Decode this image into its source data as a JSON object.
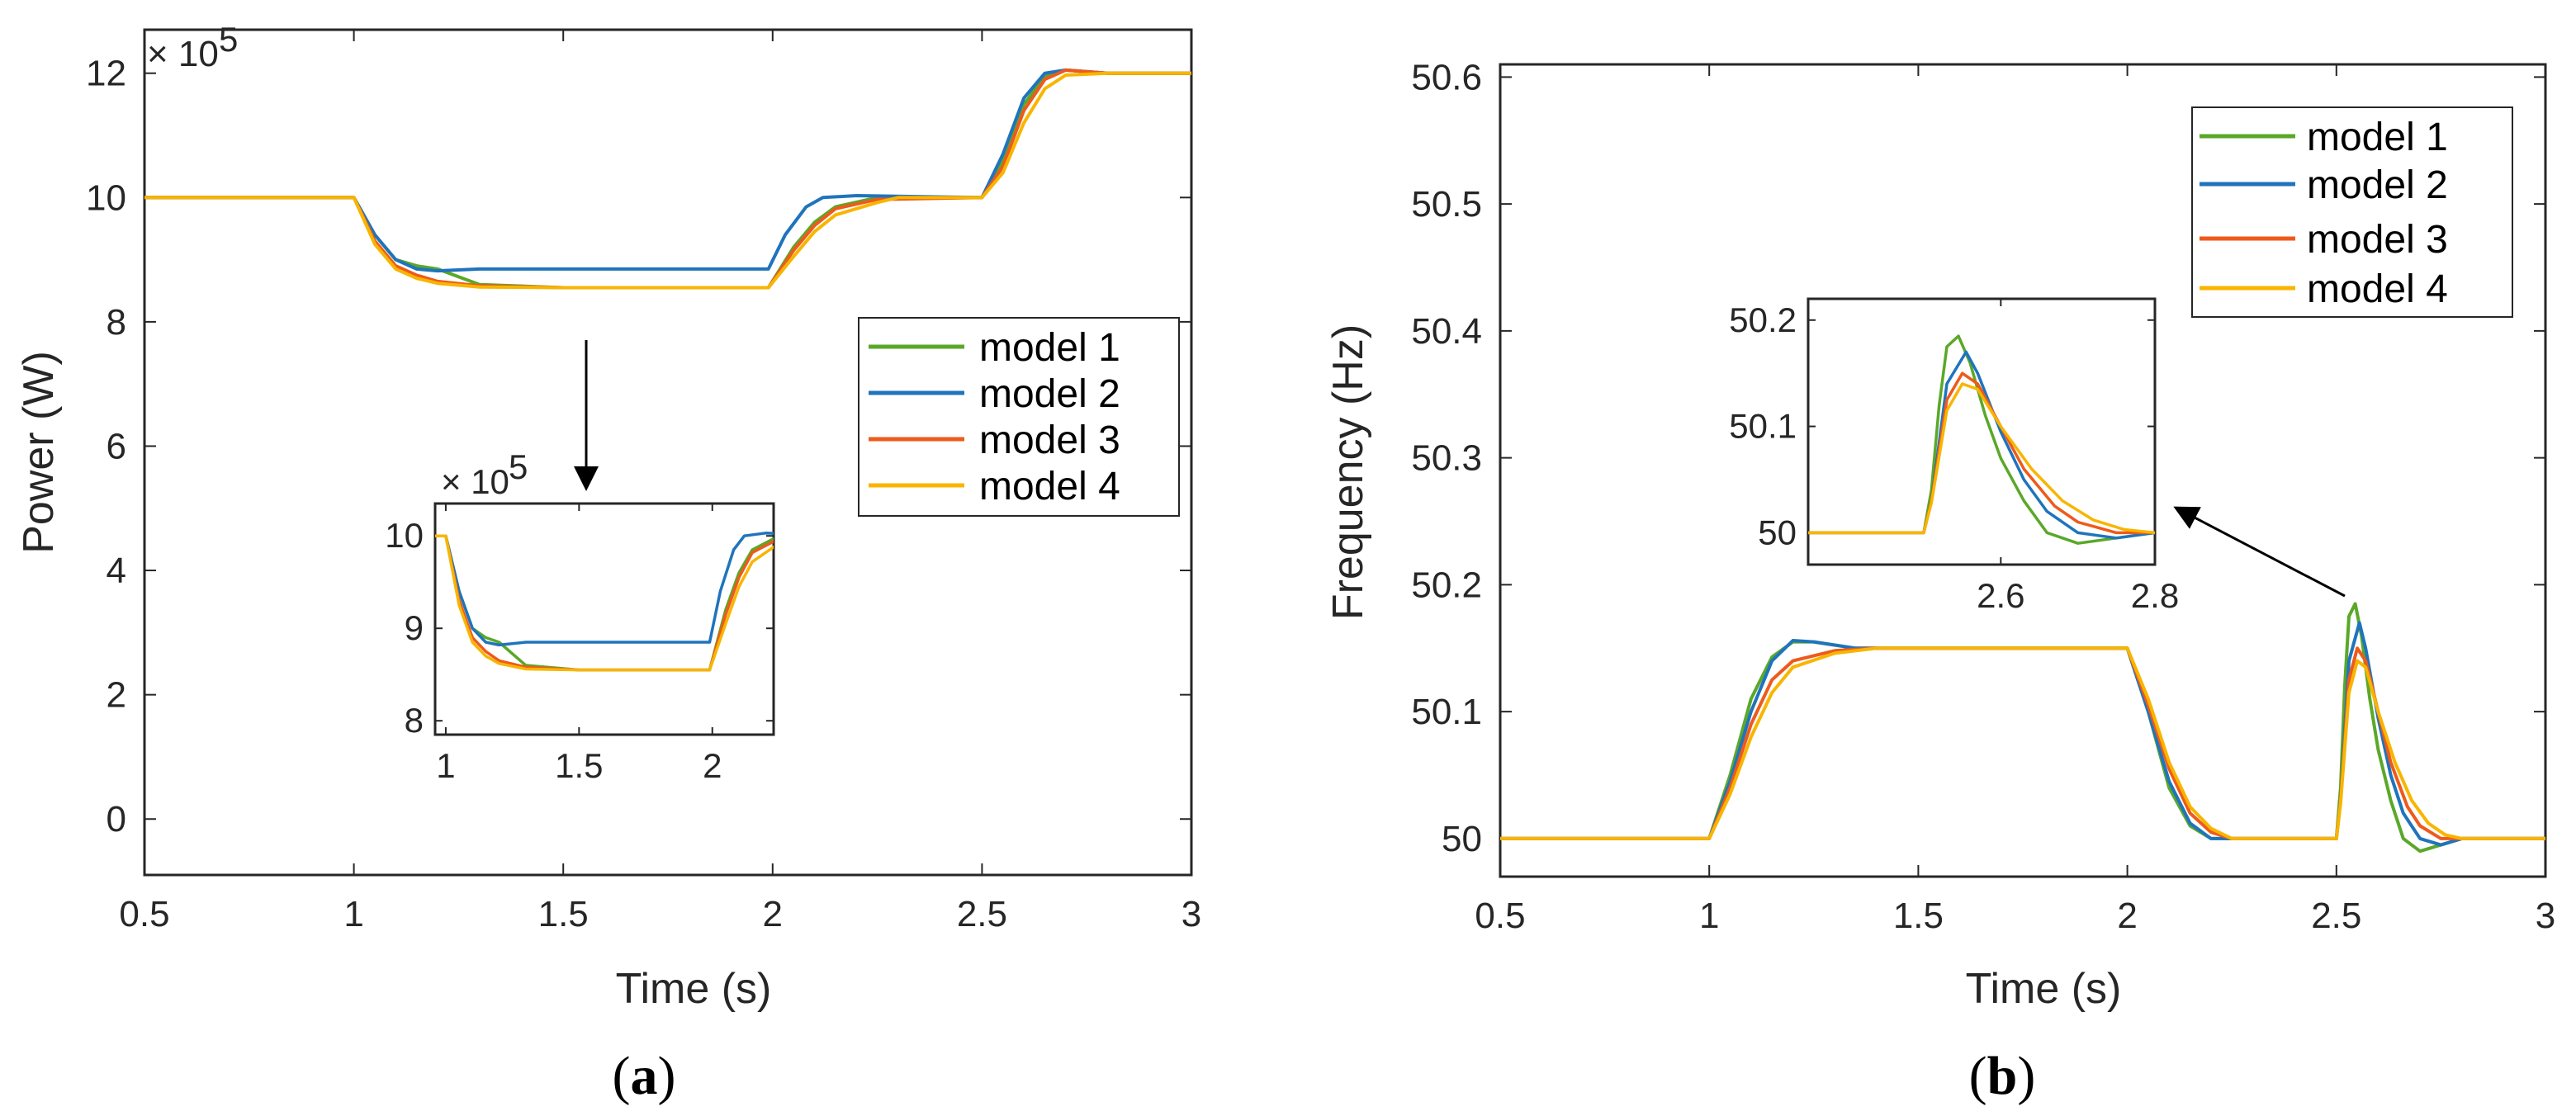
{
  "colors": {
    "model1": "#5aa829",
    "model2": "#1f74bc",
    "model3": "#ee5a1c",
    "model4": "#f8b500",
    "axis": "#262626"
  },
  "chart_data": [
    {
      "id": "a",
      "type": "line",
      "caption": "a",
      "xlabel": "Time (s)",
      "ylabel": "Power (W)",
      "exponent_base": "× 10",
      "exponent_power": "5",
      "xlim": [
        0.5,
        3
      ],
      "ylim": [
        -0.9,
        12.7
      ],
      "xticks": [
        0.5,
        1,
        1.5,
        2,
        2.5,
        3
      ],
      "xtick_labels": [
        "0.5",
        "1",
        "1.5",
        "2",
        "2.5",
        "3"
      ],
      "yticks": [
        0,
        2,
        4,
        6,
        8,
        10,
        12
      ],
      "ytick_labels": [
        "0",
        "2",
        "4",
        "6",
        "8",
        "10",
        "12"
      ],
      "legend": [
        "model 1",
        "model 2",
        "model 3",
        "model 4"
      ],
      "legend_position": "right",
      "series": [
        {
          "name": "model 1",
          "points": [
            [
              0.5,
              10
            ],
            [
              1,
              10
            ],
            [
              1.05,
              9.4
            ],
            [
              1.1,
              9.0
            ],
            [
              1.15,
              8.9
            ],
            [
              1.2,
              8.85
            ],
            [
              1.3,
              8.6
            ],
            [
              1.5,
              8.55
            ],
            [
              1.99,
              8.55
            ],
            [
              2.05,
              9.2
            ],
            [
              2.1,
              9.6
            ],
            [
              2.15,
              9.85
            ],
            [
              2.25,
              10.0
            ],
            [
              2.5,
              10.0
            ],
            [
              2.55,
              10.6
            ],
            [
              2.6,
              11.5
            ],
            [
              2.65,
              11.95
            ],
            [
              2.7,
              12.05
            ],
            [
              2.8,
              12.0
            ],
            [
              3,
              12.0
            ]
          ]
        },
        {
          "name": "model 2",
          "points": [
            [
              0.5,
              10
            ],
            [
              1,
              10
            ],
            [
              1.05,
              9.4
            ],
            [
              1.1,
              9.0
            ],
            [
              1.15,
              8.85
            ],
            [
              1.2,
              8.82
            ],
            [
              1.3,
              8.85
            ],
            [
              1.99,
              8.85
            ],
            [
              2.03,
              9.4
            ],
            [
              2.08,
              9.85
            ],
            [
              2.12,
              10.0
            ],
            [
              2.2,
              10.03
            ],
            [
              2.5,
              10.0
            ],
            [
              2.55,
              10.7
            ],
            [
              2.6,
              11.6
            ],
            [
              2.65,
              12.0
            ],
            [
              2.7,
              12.05
            ],
            [
              2.8,
              12.0
            ],
            [
              3,
              12.0
            ]
          ]
        },
        {
          "name": "model 3",
          "points": [
            [
              0.5,
              10
            ],
            [
              1,
              10
            ],
            [
              1.05,
              9.3
            ],
            [
              1.1,
              8.9
            ],
            [
              1.15,
              8.75
            ],
            [
              1.2,
              8.65
            ],
            [
              1.3,
              8.58
            ],
            [
              1.5,
              8.55
            ],
            [
              1.99,
              8.55
            ],
            [
              2.05,
              9.15
            ],
            [
              2.1,
              9.55
            ],
            [
              2.15,
              9.82
            ],
            [
              2.25,
              9.97
            ],
            [
              2.5,
              10.0
            ],
            [
              2.55,
              10.5
            ],
            [
              2.6,
              11.4
            ],
            [
              2.65,
              11.9
            ],
            [
              2.7,
              12.05
            ],
            [
              2.8,
              12.0
            ],
            [
              3,
              12.0
            ]
          ]
        },
        {
          "name": "model 4",
          "points": [
            [
              0.5,
              10
            ],
            [
              1,
              10
            ],
            [
              1.05,
              9.25
            ],
            [
              1.1,
              8.85
            ],
            [
              1.15,
              8.7
            ],
            [
              1.2,
              8.62
            ],
            [
              1.3,
              8.56
            ],
            [
              1.5,
              8.55
            ],
            [
              1.99,
              8.55
            ],
            [
              2.05,
              9.05
            ],
            [
              2.1,
              9.45
            ],
            [
              2.15,
              9.72
            ],
            [
              2.25,
              9.92
            ],
            [
              2.3,
              10.0
            ],
            [
              2.5,
              10.0
            ],
            [
              2.55,
              10.4
            ],
            [
              2.6,
              11.2
            ],
            [
              2.65,
              11.75
            ],
            [
              2.7,
              11.97
            ],
            [
              2.8,
              12.0
            ],
            [
              3,
              12.0
            ]
          ]
        }
      ],
      "inset": {
        "exponent_base": "× 10",
        "exponent_power": "5",
        "xlim": [
          0.96,
          2.23
        ],
        "ylim": [
          7.85,
          10.35
        ],
        "xticks": [
          1,
          1.5,
          2
        ],
        "xtick_labels": [
          "1",
          "1.5",
          "2"
        ],
        "yticks": [
          8,
          9,
          10
        ],
        "ytick_labels": [
          "8",
          "9",
          "10"
        ],
        "annotation": "arrow from main curve to inset"
      }
    },
    {
      "id": "b",
      "type": "line",
      "caption": "b",
      "xlabel": "Time (s)",
      "ylabel": "Frequency (Hz)",
      "xlim": [
        0.5,
        3
      ],
      "ylim": [
        49.97,
        50.61
      ],
      "xticks": [
        0.5,
        1,
        1.5,
        2,
        2.5,
        3
      ],
      "xtick_labels": [
        "0.5",
        "1",
        "1.5",
        "2",
        "2.5",
        "3"
      ],
      "yticks": [
        50,
        50.1,
        50.2,
        50.3,
        50.4,
        50.5,
        50.6
      ],
      "ytick_labels": [
        "50",
        "50.1",
        "50.2",
        "50.3",
        "50.4",
        "50.5",
        "50.6"
      ],
      "legend": [
        "model 1",
        "model 2",
        "model 3",
        "model 4"
      ],
      "legend_position": "top-right",
      "series": [
        {
          "name": "model 1",
          "points": [
            [
              0.5,
              50
            ],
            [
              1,
              50
            ],
            [
              1.05,
              50.05
            ],
            [
              1.1,
              50.11
            ],
            [
              1.15,
              50.143
            ],
            [
              1.2,
              50.155
            ],
            [
              1.25,
              50.155
            ],
            [
              1.35,
              50.15
            ],
            [
              2,
              50.15
            ],
            [
              2.05,
              50.1
            ],
            [
              2.1,
              50.04
            ],
            [
              2.15,
              50.01
            ],
            [
              2.2,
              50.0
            ],
            [
              2.5,
              50.0
            ],
            [
              2.51,
              50.04
            ],
            [
              2.52,
              50.12
            ],
            [
              2.53,
              50.175
            ],
            [
              2.545,
              50.185
            ],
            [
              2.56,
              50.16
            ],
            [
              2.58,
              50.11
            ],
            [
              2.6,
              50.07
            ],
            [
              2.63,
              50.03
            ],
            [
              2.66,
              50.0
            ],
            [
              2.7,
              49.99
            ],
            [
              2.75,
              49.995
            ],
            [
              2.8,
              50.0
            ],
            [
              3,
              50.0
            ]
          ]
        },
        {
          "name": "model 2",
          "points": [
            [
              0.5,
              50
            ],
            [
              1,
              50
            ],
            [
              1.05,
              50.045
            ],
            [
              1.1,
              50.1
            ],
            [
              1.15,
              50.14
            ],
            [
              1.2,
              50.156
            ],
            [
              1.25,
              50.155
            ],
            [
              1.35,
              50.15
            ],
            [
              2,
              50.15
            ],
            [
              2.05,
              50.1
            ],
            [
              2.1,
              50.045
            ],
            [
              2.15,
              50.012
            ],
            [
              2.2,
              50.0
            ],
            [
              2.5,
              50.0
            ],
            [
              2.51,
              50.03
            ],
            [
              2.53,
              50.14
            ],
            [
              2.555,
              50.17
            ],
            [
              2.57,
              50.15
            ],
            [
              2.6,
              50.095
            ],
            [
              2.63,
              50.05
            ],
            [
              2.66,
              50.02
            ],
            [
              2.7,
              50.0
            ],
            [
              2.75,
              49.995
            ],
            [
              2.8,
              50.0
            ],
            [
              3,
              50.0
            ]
          ]
        },
        {
          "name": "model 3",
          "points": [
            [
              0.5,
              50
            ],
            [
              1,
              50
            ],
            [
              1.05,
              50.04
            ],
            [
              1.1,
              50.09
            ],
            [
              1.15,
              50.125
            ],
            [
              1.2,
              50.14
            ],
            [
              1.3,
              50.148
            ],
            [
              1.4,
              50.15
            ],
            [
              2,
              50.15
            ],
            [
              2.05,
              50.105
            ],
            [
              2.1,
              50.055
            ],
            [
              2.15,
              50.02
            ],
            [
              2.2,
              50.005
            ],
            [
              2.25,
              50.0
            ],
            [
              2.5,
              50.0
            ],
            [
              2.51,
              50.03
            ],
            [
              2.53,
              50.125
            ],
            [
              2.55,
              50.15
            ],
            [
              2.57,
              50.14
            ],
            [
              2.6,
              50.1
            ],
            [
              2.63,
              50.06
            ],
            [
              2.67,
              50.025
            ],
            [
              2.7,
              50.01
            ],
            [
              2.75,
              50.0
            ],
            [
              2.8,
              50.0
            ],
            [
              3,
              50.0
            ]
          ]
        },
        {
          "name": "model 4",
          "points": [
            [
              0.5,
              50
            ],
            [
              1,
              50
            ],
            [
              1.05,
              50.035
            ],
            [
              1.1,
              50.08
            ],
            [
              1.15,
              50.115
            ],
            [
              1.2,
              50.135
            ],
            [
              1.3,
              50.146
            ],
            [
              1.4,
              50.15
            ],
            [
              2,
              50.15
            ],
            [
              2.05,
              50.11
            ],
            [
              2.1,
              50.06
            ],
            [
              2.15,
              50.025
            ],
            [
              2.2,
              50.008
            ],
            [
              2.25,
              50.0
            ],
            [
              2.5,
              50.0
            ],
            [
              2.51,
              50.028
            ],
            [
              2.53,
              50.115
            ],
            [
              2.55,
              50.14
            ],
            [
              2.57,
              50.135
            ],
            [
              2.6,
              50.1
            ],
            [
              2.64,
              50.06
            ],
            [
              2.68,
              50.03
            ],
            [
              2.72,
              50.012
            ],
            [
              2.76,
              50.003
            ],
            [
              2.8,
              50.0
            ],
            [
              3,
              50.0
            ]
          ]
        }
      ],
      "inset": {
        "xlim": [
          2.35,
          2.8
        ],
        "ylim": [
          49.97,
          50.22
        ],
        "xticks": [
          2.6,
          2.8
        ],
        "xtick_labels": [
          "2.6",
          "2.8"
        ],
        "yticks": [
          50,
          50.1,
          50.2
        ],
        "ytick_labels": [
          "50",
          "50.1",
          "50.2"
        ],
        "annotation": "arrow from peak at 2.5 s to inset"
      }
    }
  ]
}
